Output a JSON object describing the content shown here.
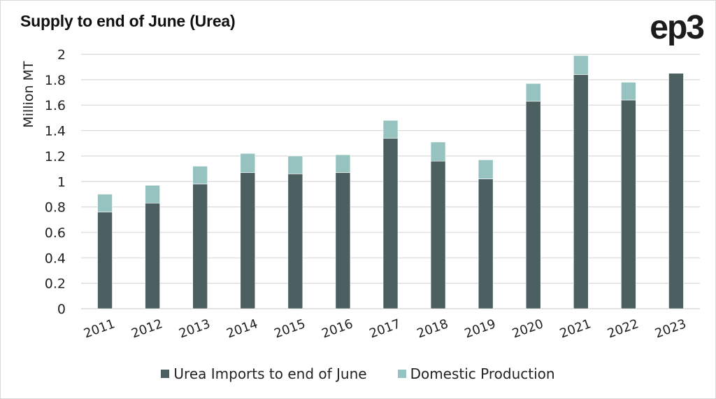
{
  "header": {
    "title": "Supply to end of June (Urea)",
    "logo_text": "ep3"
  },
  "chart_data": {
    "type": "bar",
    "stacked": true,
    "title": "Supply to end of June (Urea)",
    "xlabel": "",
    "ylabel": "Million MT",
    "ylim": [
      0,
      2
    ],
    "yticks": [
      "0",
      "0.2",
      "0.4",
      "0.6",
      "0.8",
      "1",
      "1.2",
      "1.4",
      "1.6",
      "1.8",
      "2"
    ],
    "ytick_values": [
      0,
      0.2,
      0.4,
      0.6,
      0.8,
      1.0,
      1.2,
      1.4,
      1.6,
      1.8,
      2.0
    ],
    "grid": true,
    "legend_position": "bottom",
    "categories": [
      "2011",
      "2012",
      "2013",
      "2014",
      "2015",
      "2016",
      "2017",
      "2018",
      "2019",
      "2020",
      "2021",
      "2022",
      "2023"
    ],
    "series": [
      {
        "name": "Urea Imports to end of June",
        "color": "#4b5e60",
        "values": [
          0.76,
          0.83,
          0.98,
          1.07,
          1.06,
          1.07,
          1.34,
          1.16,
          1.02,
          1.63,
          1.84,
          1.64,
          1.85
        ]
      },
      {
        "name": "Domestic Production",
        "color": "#96c2c0",
        "values": [
          0.14,
          0.14,
          0.14,
          0.15,
          0.14,
          0.14,
          0.14,
          0.15,
          0.15,
          0.14,
          0.15,
          0.14,
          0
        ]
      }
    ]
  },
  "legend": {
    "items": [
      {
        "label": "Urea Imports to end of June",
        "color": "#4b5e60"
      },
      {
        "label": "Domestic Production",
        "color": "#96c2c0"
      }
    ]
  },
  "colors": {
    "grid": "#d9d9d9",
    "text": "#222222"
  }
}
